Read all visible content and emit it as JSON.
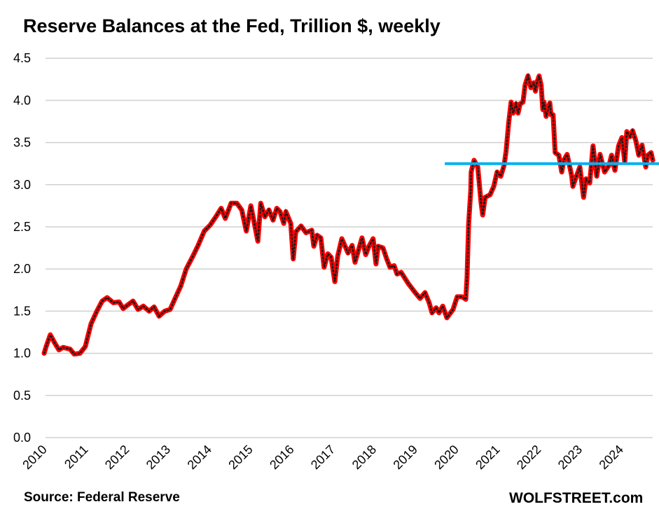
{
  "chart_data": {
    "type": "line",
    "title": "Reserve Balances at the Fed, Trillion $, weekly",
    "xlabel": "",
    "ylabel": "",
    "xlim": [
      2010,
      2025.05
    ],
    "ylim": [
      0,
      4.5
    ],
    "grid": true,
    "x_ticks": [
      "2010",
      "2011",
      "2012",
      "2013",
      "2014",
      "2015",
      "2016",
      "2017",
      "2018",
      "2019",
      "2020",
      "2021",
      "2022",
      "2023",
      "2024"
    ],
    "y_ticks": [
      "0.0",
      "0.5",
      "1.0",
      "1.5",
      "2.0",
      "2.5",
      "3.0",
      "3.5",
      "4.0",
      "4.5"
    ],
    "colors": {
      "line": "#ff0000",
      "markers": "#1a1a1a",
      "reference": "#00b0f0",
      "grid": "#d0d0d0"
    },
    "series": [
      {
        "name": "Reserve Balances",
        "points": [
          [
            2010.0,
            1.0
          ],
          [
            2010.05,
            1.08
          ],
          [
            2010.15,
            1.22
          ],
          [
            2010.26,
            1.12
          ],
          [
            2010.36,
            1.04
          ],
          [
            2010.46,
            1.07
          ],
          [
            2010.63,
            1.05
          ],
          [
            2010.73,
            0.99
          ],
          [
            2010.87,
            1.0
          ],
          [
            2011.0,
            1.08
          ],
          [
            2011.14,
            1.35
          ],
          [
            2011.28,
            1.5
          ],
          [
            2011.41,
            1.62
          ],
          [
            2011.53,
            1.66
          ],
          [
            2011.68,
            1.6
          ],
          [
            2011.82,
            1.61
          ],
          [
            2011.92,
            1.53
          ],
          [
            2012.02,
            1.57
          ],
          [
            2012.16,
            1.62
          ],
          [
            2012.28,
            1.52
          ],
          [
            2012.41,
            1.56
          ],
          [
            2012.55,
            1.5
          ],
          [
            2012.67,
            1.55
          ],
          [
            2012.79,
            1.44
          ],
          [
            2012.93,
            1.5
          ],
          [
            2013.06,
            1.52
          ],
          [
            2013.18,
            1.65
          ],
          [
            2013.32,
            1.8
          ],
          [
            2013.45,
            2.0
          ],
          [
            2013.61,
            2.15
          ],
          [
            2013.74,
            2.28
          ],
          [
            2013.89,
            2.45
          ],
          [
            2014.03,
            2.52
          ],
          [
            2014.17,
            2.62
          ],
          [
            2014.3,
            2.72
          ],
          [
            2014.4,
            2.6
          ],
          [
            2014.54,
            2.78
          ],
          [
            2014.68,
            2.78
          ],
          [
            2014.8,
            2.7
          ],
          [
            2014.91,
            2.45
          ],
          [
            2015.02,
            2.75
          ],
          [
            2015.09,
            2.58
          ],
          [
            2015.19,
            2.33
          ],
          [
            2015.26,
            2.78
          ],
          [
            2015.36,
            2.62
          ],
          [
            2015.46,
            2.7
          ],
          [
            2015.56,
            2.58
          ],
          [
            2015.65,
            2.72
          ],
          [
            2015.73,
            2.68
          ],
          [
            2015.82,
            2.54
          ],
          [
            2015.87,
            2.68
          ],
          [
            2015.99,
            2.54
          ],
          [
            2016.05,
            2.12
          ],
          [
            2016.11,
            2.44
          ],
          [
            2016.24,
            2.51
          ],
          [
            2016.36,
            2.43
          ],
          [
            2016.5,
            2.46
          ],
          [
            2016.55,
            2.27
          ],
          [
            2016.63,
            2.4
          ],
          [
            2016.72,
            2.37
          ],
          [
            2016.8,
            2.02
          ],
          [
            2016.89,
            2.18
          ],
          [
            2016.97,
            2.14
          ],
          [
            2017.06,
            1.85
          ],
          [
            2017.13,
            2.15
          ],
          [
            2017.23,
            2.36
          ],
          [
            2017.38,
            2.19
          ],
          [
            2017.48,
            2.28
          ],
          [
            2017.55,
            2.08
          ],
          [
            2017.72,
            2.37
          ],
          [
            2017.81,
            2.17
          ],
          [
            2017.89,
            2.27
          ],
          [
            2017.99,
            2.36
          ],
          [
            2018.06,
            2.06
          ],
          [
            2018.11,
            2.27
          ],
          [
            2018.23,
            2.25
          ],
          [
            2018.32,
            2.12
          ],
          [
            2018.4,
            2.02
          ],
          [
            2018.5,
            2.04
          ],
          [
            2018.57,
            1.94
          ],
          [
            2018.67,
            1.96
          ],
          [
            2018.84,
            1.83
          ],
          [
            2019.01,
            1.72
          ],
          [
            2019.13,
            1.65
          ],
          [
            2019.25,
            1.72
          ],
          [
            2019.35,
            1.6
          ],
          [
            2019.42,
            1.48
          ],
          [
            2019.52,
            1.54
          ],
          [
            2019.59,
            1.48
          ],
          [
            2019.68,
            1.56
          ],
          [
            2019.78,
            1.42
          ],
          [
            2019.93,
            1.52
          ],
          [
            2020.03,
            1.67
          ],
          [
            2020.15,
            1.67
          ],
          [
            2020.24,
            1.64
          ],
          [
            2020.27,
            1.9
          ],
          [
            2020.31,
            2.54
          ],
          [
            2020.36,
            2.93
          ],
          [
            2020.37,
            3.15
          ],
          [
            2020.44,
            3.29
          ],
          [
            2020.53,
            3.21
          ],
          [
            2020.61,
            2.79
          ],
          [
            2020.65,
            2.64
          ],
          [
            2020.71,
            2.85
          ],
          [
            2020.83,
            2.88
          ],
          [
            2020.92,
            2.98
          ],
          [
            2021.0,
            3.15
          ],
          [
            2021.09,
            3.1
          ],
          [
            2021.17,
            3.23
          ],
          [
            2021.22,
            3.4
          ],
          [
            2021.28,
            3.73
          ],
          [
            2021.34,
            3.98
          ],
          [
            2021.39,
            3.85
          ],
          [
            2021.46,
            3.96
          ],
          [
            2021.51,
            3.85
          ],
          [
            2021.56,
            3.96
          ],
          [
            2021.63,
            3.98
          ],
          [
            2021.68,
            4.18
          ],
          [
            2021.75,
            4.29
          ],
          [
            2021.82,
            4.15
          ],
          [
            2021.89,
            4.21
          ],
          [
            2021.93,
            4.11
          ],
          [
            2021.96,
            4.2
          ],
          [
            2022.02,
            4.29
          ],
          [
            2022.07,
            4.18
          ],
          [
            2022.11,
            3.89
          ],
          [
            2022.14,
            3.98
          ],
          [
            2022.19,
            3.81
          ],
          [
            2022.28,
            3.97
          ],
          [
            2022.31,
            3.83
          ],
          [
            2022.36,
            3.83
          ],
          [
            2022.41,
            3.38
          ],
          [
            2022.5,
            3.35
          ],
          [
            2022.57,
            3.15
          ],
          [
            2022.62,
            3.29
          ],
          [
            2022.7,
            3.36
          ],
          [
            2022.81,
            3.11
          ],
          [
            2022.84,
            2.98
          ],
          [
            2022.91,
            3.08
          ],
          [
            2023.01,
            3.21
          ],
          [
            2023.1,
            2.85
          ],
          [
            2023.16,
            3.07
          ],
          [
            2023.25,
            3.02
          ],
          [
            2023.33,
            3.46
          ],
          [
            2023.42,
            3.1
          ],
          [
            2023.5,
            3.36
          ],
          [
            2023.61,
            3.15
          ],
          [
            2023.72,
            3.23
          ],
          [
            2023.78,
            3.35
          ],
          [
            2023.86,
            3.17
          ],
          [
            2023.95,
            3.46
          ],
          [
            2024.03,
            3.56
          ],
          [
            2024.1,
            3.27
          ],
          [
            2024.15,
            3.63
          ],
          [
            2024.23,
            3.57
          ],
          [
            2024.29,
            3.64
          ],
          [
            2024.37,
            3.52
          ],
          [
            2024.44,
            3.35
          ],
          [
            2024.52,
            3.47
          ],
          [
            2024.61,
            3.21
          ],
          [
            2024.66,
            3.35
          ],
          [
            2024.74,
            3.38
          ],
          [
            2024.78,
            3.29
          ]
        ]
      }
    ],
    "reference_line": {
      "value": 3.25,
      "x_start": 2019.73,
      "x_end": 2025.05
    },
    "annotations": {
      "source": "Source: Federal Reserve",
      "brand": "WOLFSTREET.com"
    }
  }
}
